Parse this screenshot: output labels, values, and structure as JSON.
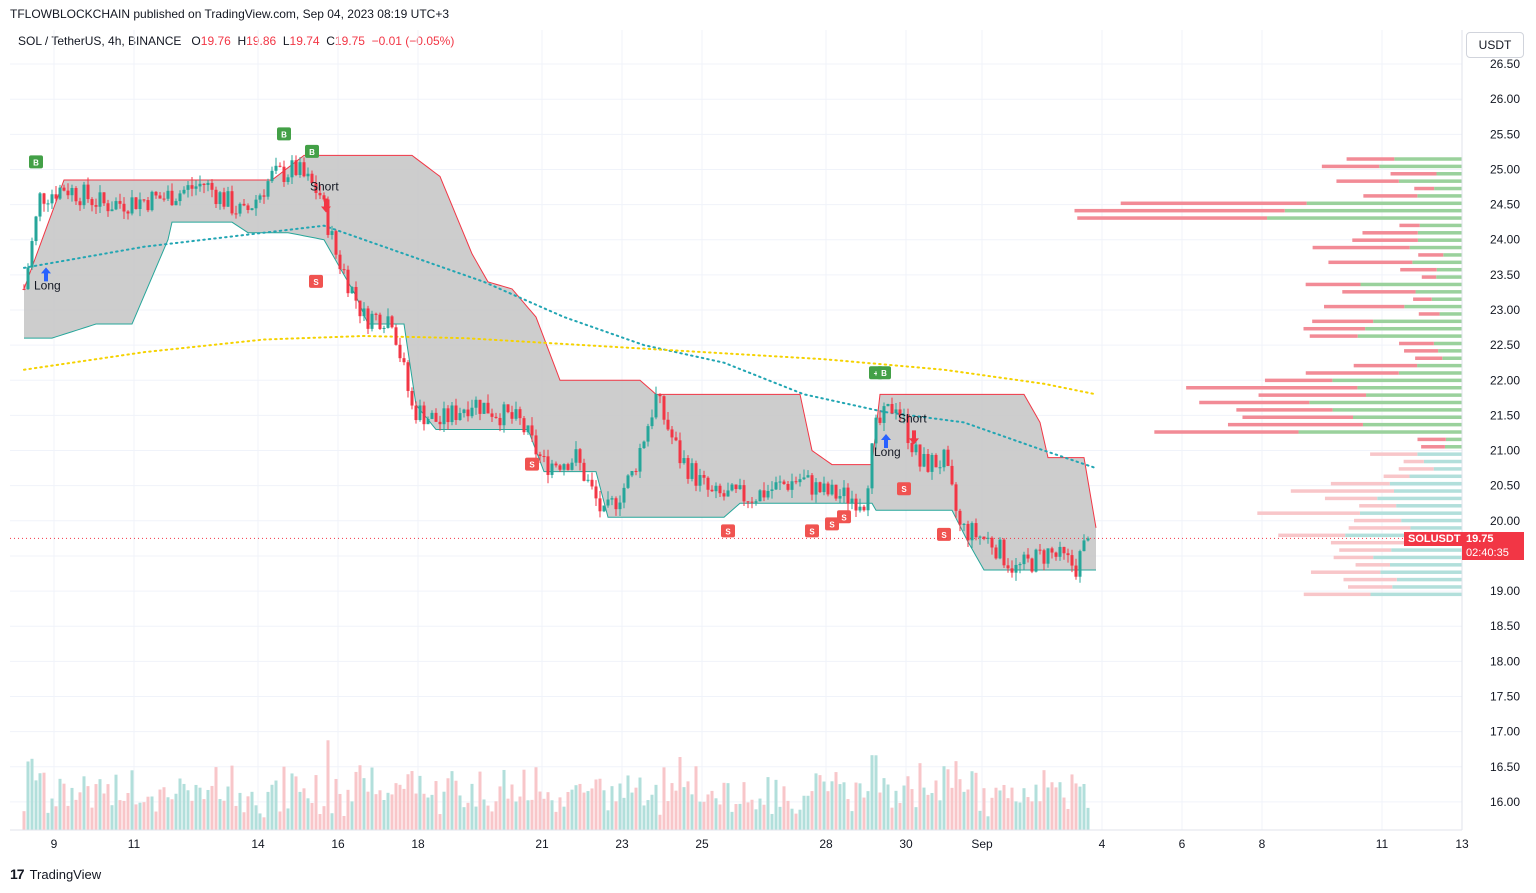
{
  "header": {
    "published": "TFLOWBLOCKCHAIN published on TradingView.com, Sep 04, 2023 08:19 UTC+3"
  },
  "legend": {
    "symbol": "SOL / TetherUS, 4h, BINANCE",
    "o_label": "O",
    "o": "19.76",
    "h_label": "H",
    "h": "19.86",
    "l_label": "L",
    "l": "19.74",
    "c_label": "C",
    "c": "19.75",
    "change": "−0.01 (−0.05%)"
  },
  "currency": "USDT",
  "footer": {
    "brand": "TradingView"
  },
  "price_labels": {
    "symbol": "SOLUSDT",
    "price": "19.75",
    "countdown": "02:40:35"
  },
  "colors": {
    "up": "#26a69a",
    "down": "#f23645",
    "cloud": "#c8c8c8",
    "ema_fast": "#22a6b3",
    "ema_slow": "#f5d200",
    "vp_up": "#9ad19c",
    "vp_down": "#f28b96",
    "buy": "#43a047",
    "sell": "#f05350"
  },
  "chart_data": {
    "type": "candlestick",
    "ylim": [
      15.6,
      26.7
    ],
    "y_ticks": [
      "26.50",
      "26.00",
      "25.50",
      "25.00",
      "24.50",
      "24.00",
      "23.50",
      "23.00",
      "22.50",
      "22.00",
      "21.50",
      "21.00",
      "20.50",
      "20.00",
      "19.50",
      "19.00",
      "18.50",
      "18.00",
      "17.50",
      "17.00",
      "16.50",
      "16.00"
    ],
    "y_tick_values": [
      26.5,
      26.0,
      25.5,
      25.0,
      24.5,
      24.0,
      23.5,
      23.0,
      22.5,
      22.0,
      21.5,
      21.0,
      20.5,
      20.0,
      19.5,
      19.0,
      18.5,
      18.0,
      17.5,
      17.0,
      16.5,
      16.0
    ],
    "x_ticks": [
      "9",
      "11",
      "14",
      "16",
      "18",
      "21",
      "23",
      "25",
      "28",
      "30",
      "Sep",
      "4",
      "6",
      "8",
      "11",
      "13"
    ],
    "x_tick_bars": [
      4,
      24,
      55,
      75,
      95,
      126,
      146,
      166,
      197,
      217,
      236,
      266,
      286,
      306,
      336,
      356
    ],
    "bar_count": 266,
    "current_price": 19.75,
    "key_points": [
      {
        "bar": 0,
        "close": 23.3
      },
      {
        "bar": 4,
        "close": 24.6
      },
      {
        "bar": 10,
        "close": 24.75
      },
      {
        "bar": 20,
        "close": 24.5
      },
      {
        "bar": 35,
        "close": 24.6
      },
      {
        "bar": 45,
        "close": 24.8
      },
      {
        "bar": 55,
        "close": 24.35
      },
      {
        "bar": 62,
        "close": 24.9
      },
      {
        "bar": 68,
        "close": 25.0
      },
      {
        "bar": 74,
        "close": 24.65
      },
      {
        "bar": 78,
        "close": 23.8
      },
      {
        "bar": 85,
        "close": 22.9
      },
      {
        "bar": 92,
        "close": 22.9
      },
      {
        "bar": 97,
        "close": 21.6
      },
      {
        "bar": 104,
        "close": 21.4
      },
      {
        "bar": 112,
        "close": 21.7
      },
      {
        "bar": 124,
        "close": 21.4
      },
      {
        "bar": 130,
        "close": 20.8
      },
      {
        "bar": 138,
        "close": 20.9
      },
      {
        "bar": 145,
        "close": 20.05
      },
      {
        "bar": 152,
        "close": 20.65
      },
      {
        "bar": 158,
        "close": 21.75
      },
      {
        "bar": 164,
        "close": 20.9
      },
      {
        "bar": 172,
        "close": 20.35
      },
      {
        "bar": 182,
        "close": 20.35
      },
      {
        "bar": 194,
        "close": 20.6
      },
      {
        "bar": 200,
        "close": 20.4
      },
      {
        "bar": 210,
        "close": 20.3
      },
      {
        "bar": 213,
        "close": 21.3
      },
      {
        "bar": 218,
        "close": 21.7
      },
      {
        "bar": 224,
        "close": 20.8
      },
      {
        "bar": 230,
        "close": 20.85
      },
      {
        "bar": 234,
        "close": 19.9
      },
      {
        "bar": 242,
        "close": 19.7
      },
      {
        "bar": 248,
        "close": 19.3
      },
      {
        "bar": 256,
        "close": 19.55
      },
      {
        "bar": 263,
        "close": 19.35
      },
      {
        "bar": 266,
        "close": 19.75
      }
    ],
    "cloud_top": [
      {
        "bar": 0,
        "v": 23.3
      },
      {
        "bar": 10,
        "v": 24.85
      },
      {
        "bar": 62,
        "v": 24.85
      },
      {
        "bar": 70,
        "v": 25.2
      },
      {
        "bar": 97,
        "v": 25.2
      },
      {
        "bar": 104,
        "v": 24.9
      },
      {
        "bar": 112,
        "v": 23.8
      },
      {
        "bar": 116,
        "v": 23.4
      },
      {
        "bar": 122,
        "v": 23.3
      },
      {
        "bar": 128,
        "v": 22.9
      },
      {
        "bar": 133,
        "v": 22.15
      },
      {
        "bar": 134,
        "v": 22.0
      },
      {
        "bar": 154,
        "v": 22.0
      },
      {
        "bar": 158,
        "v": 21.8
      },
      {
        "bar": 194,
        "v": 21.8
      },
      {
        "bar": 197,
        "v": 21.0
      },
      {
        "bar": 202,
        "v": 20.8
      },
      {
        "bar": 212,
        "v": 20.8
      },
      {
        "bar": 214,
        "v": 21.8
      },
      {
        "bar": 250,
        "v": 21.8
      },
      {
        "bar": 254,
        "v": 21.4
      },
      {
        "bar": 256,
        "v": 20.9
      },
      {
        "bar": 265,
        "v": 20.9
      },
      {
        "bar": 268,
        "v": 19.9
      }
    ],
    "cloud_bottom": [
      {
        "bar": 0,
        "v": 22.6
      },
      {
        "bar": 7,
        "v": 22.6
      },
      {
        "bar": 18,
        "v": 22.8
      },
      {
        "bar": 27,
        "v": 22.8
      },
      {
        "bar": 30,
        "v": 23.2
      },
      {
        "bar": 36,
        "v": 24.0
      },
      {
        "bar": 37,
        "v": 24.25
      },
      {
        "bar": 52,
        "v": 24.25
      },
      {
        "bar": 56,
        "v": 24.1
      },
      {
        "bar": 66,
        "v": 24.1
      },
      {
        "bar": 75,
        "v": 24.0
      },
      {
        "bar": 83,
        "v": 23.2
      },
      {
        "bar": 86,
        "v": 22.8
      },
      {
        "bar": 95,
        "v": 22.8
      },
      {
        "bar": 98,
        "v": 21.65
      },
      {
        "bar": 103,
        "v": 21.3
      },
      {
        "bar": 126,
        "v": 21.3
      },
      {
        "bar": 130,
        "v": 20.7
      },
      {
        "bar": 143,
        "v": 20.7
      },
      {
        "bar": 146,
        "v": 20.05
      },
      {
        "bar": 175,
        "v": 20.05
      },
      {
        "bar": 179,
        "v": 20.25
      },
      {
        "bar": 212,
        "v": 20.25
      },
      {
        "bar": 213,
        "v": 20.15
      },
      {
        "bar": 232,
        "v": 20.15
      },
      {
        "bar": 236,
        "v": 19.7
      },
      {
        "bar": 240,
        "v": 19.3
      },
      {
        "bar": 268,
        "v": 19.3
      }
    ],
    "ema_fast": [
      {
        "bar": 0,
        "v": 23.6
      },
      {
        "bar": 30,
        "v": 23.9
      },
      {
        "bar": 60,
        "v": 24.1
      },
      {
        "bar": 75,
        "v": 24.2
      },
      {
        "bar": 95,
        "v": 23.8
      },
      {
        "bar": 115,
        "v": 23.4
      },
      {
        "bar": 135,
        "v": 22.9
      },
      {
        "bar": 155,
        "v": 22.5
      },
      {
        "bar": 175,
        "v": 22.25
      },
      {
        "bar": 195,
        "v": 21.8
      },
      {
        "bar": 215,
        "v": 21.55
      },
      {
        "bar": 235,
        "v": 21.4
      },
      {
        "bar": 255,
        "v": 21.0
      },
      {
        "bar": 268,
        "v": 20.75
      }
    ],
    "ema_slow": [
      {
        "bar": 0,
        "v": 22.15
      },
      {
        "bar": 30,
        "v": 22.4
      },
      {
        "bar": 60,
        "v": 22.58
      },
      {
        "bar": 85,
        "v": 22.63
      },
      {
        "bar": 110,
        "v": 22.6
      },
      {
        "bar": 140,
        "v": 22.5
      },
      {
        "bar": 170,
        "v": 22.4
      },
      {
        "bar": 200,
        "v": 22.3
      },
      {
        "bar": 230,
        "v": 22.15
      },
      {
        "bar": 255,
        "v": 21.95
      },
      {
        "bar": 268,
        "v": 21.8
      }
    ],
    "signals": [
      {
        "type": "buy",
        "label": "B",
        "bar": 3,
        "price": 25.1
      },
      {
        "type": "buy",
        "label": "B",
        "bar": 65,
        "price": 25.5
      },
      {
        "type": "buy",
        "label": "B",
        "bar": 72,
        "price": 25.25
      },
      {
        "type": "buy",
        "label": "+",
        "bar": 213,
        "price": 22.1
      },
      {
        "type": "buy",
        "label": "B",
        "bar": 215,
        "price": 22.1
      },
      {
        "type": "sell",
        "label": "S",
        "bar": 73,
        "price": 23.4
      },
      {
        "type": "sell",
        "label": "S",
        "bar": 127,
        "price": 20.8
      },
      {
        "type": "sell",
        "label": "S",
        "bar": 176,
        "price": 19.85
      },
      {
        "type": "sell",
        "label": "S",
        "bar": 197,
        "price": 19.85
      },
      {
        "type": "sell",
        "label": "S",
        "bar": 202,
        "price": 19.95
      },
      {
        "type": "sell",
        "label": "S",
        "bar": 205,
        "price": 20.05
      },
      {
        "type": "sell",
        "label": "S",
        "bar": 220,
        "price": 20.45
      },
      {
        "type": "sell",
        "label": "S",
        "bar": 230,
        "price": 19.8
      }
    ],
    "annotations": [
      {
        "text": "Long",
        "bar": 5,
        "price": 23.35,
        "arrow": "up"
      },
      {
        "text": "Short",
        "bar": 75,
        "price": 24.7,
        "arrow": "down"
      },
      {
        "text": "Long",
        "bar": 215,
        "price": 20.98,
        "arrow": "up"
      },
      {
        "text": "Short",
        "bar": 222,
        "price": 21.4,
        "arrow": "down"
      }
    ],
    "volume_profile_rows": 60,
    "volume_max_ratio_in_pane": 0.3
  }
}
